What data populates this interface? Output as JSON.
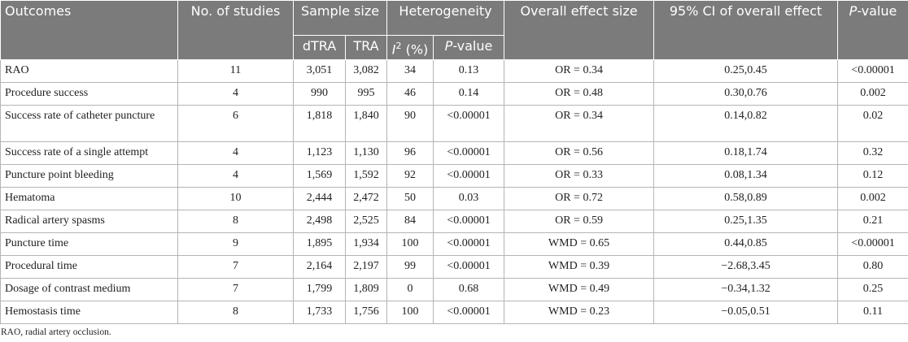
{
  "headers": {
    "outcomes": "Outcomes",
    "studies": "No. of studies",
    "sample_size": "Sample size",
    "heterogeneity": "Heterogeneity",
    "effect": "Overall effect size",
    "ci": "95% CI of overall effect",
    "pvalue_italic": "P",
    "pvalue_rest": "-value",
    "dtra": "dTRA",
    "tra": "TRA",
    "i2_letter": "I",
    "i2_sup": "2",
    "i2_unit": " (%)",
    "het_p_italic": "P",
    "het_p_rest": "-value"
  },
  "rows": [
    {
      "outcome": "RAO",
      "studies": "11",
      "dtra": "3,051",
      "tra": "3,082",
      "i2": "34",
      "het_p": "0.13",
      "effect": "OR = 0.34",
      "ci": "0.25,0.45",
      "p": "<0.00001"
    },
    {
      "outcome": "Procedure success",
      "studies": "4",
      "dtra": "990",
      "tra": "995",
      "i2": "46",
      "het_p": "0.14",
      "effect": "OR = 0.48",
      "ci": "0.30,0.76",
      "p": "0.002"
    },
    {
      "outcome": "Success rate of catheter puncture",
      "studies": "6",
      "dtra": "1,818",
      "tra": "1,840",
      "i2": "90",
      "het_p": "<0.00001",
      "effect": "OR = 0.34",
      "ci": "0.14,0.82",
      "p": "0.02"
    },
    {
      "outcome": "Success rate of a single attempt",
      "studies": "4",
      "dtra": "1,123",
      "tra": "1,130",
      "i2": "96",
      "het_p": "<0.00001",
      "effect": "OR = 0.56",
      "ci": "0.18,1.74",
      "p": "0.32"
    },
    {
      "outcome": "Puncture point bleeding",
      "studies": "4",
      "dtra": "1,569",
      "tra": "1,592",
      "i2": "92",
      "het_p": "<0.00001",
      "effect": "OR = 0.33",
      "ci": "0.08,1.34",
      "p": "0.12"
    },
    {
      "outcome": "Hematoma",
      "studies": "10",
      "dtra": "2,444",
      "tra": "2,472",
      "i2": "50",
      "het_p": "0.03",
      "effect": "OR = 0.72",
      "ci": "0.58,0.89",
      "p": "0.002"
    },
    {
      "outcome": "Radical artery spasms",
      "studies": "8",
      "dtra": "2,498",
      "tra": "2,525",
      "i2": "84",
      "het_p": "<0.00001",
      "effect": "OR = 0.59",
      "ci": "0.25,1.35",
      "p": "0.21"
    },
    {
      "outcome": "Puncture time",
      "studies": "9",
      "dtra": "1,895",
      "tra": "1,934",
      "i2": "100",
      "het_p": "<0.00001",
      "effect": "WMD = 0.65",
      "ci": "0.44,0.85",
      "p": "<0.00001"
    },
    {
      "outcome": "Procedural time",
      "studies": "7",
      "dtra": "2,164",
      "tra": "2,197",
      "i2": "99",
      "het_p": "<0.00001",
      "effect": "WMD = 0.39",
      "ci": "−2.68,3.45",
      "p": "0.80"
    },
    {
      "outcome": "Dosage of contrast medium",
      "studies": "7",
      "dtra": "1,799",
      "tra": "1,809",
      "i2": "0",
      "het_p": "0.68",
      "effect": "WMD = 0.49",
      "ci": "−0.34,1.32",
      "p": "0.25"
    },
    {
      "outcome": "Hemostasis time",
      "studies": "8",
      "dtra": "1,733",
      "tra": "1,756",
      "i2": "100",
      "het_p": "<0.00001",
      "effect": "WMD = 0.23",
      "ci": "−0.05,0.51",
      "p": "0.11"
    }
  ],
  "footnote": "RAO, radial artery occlusion."
}
